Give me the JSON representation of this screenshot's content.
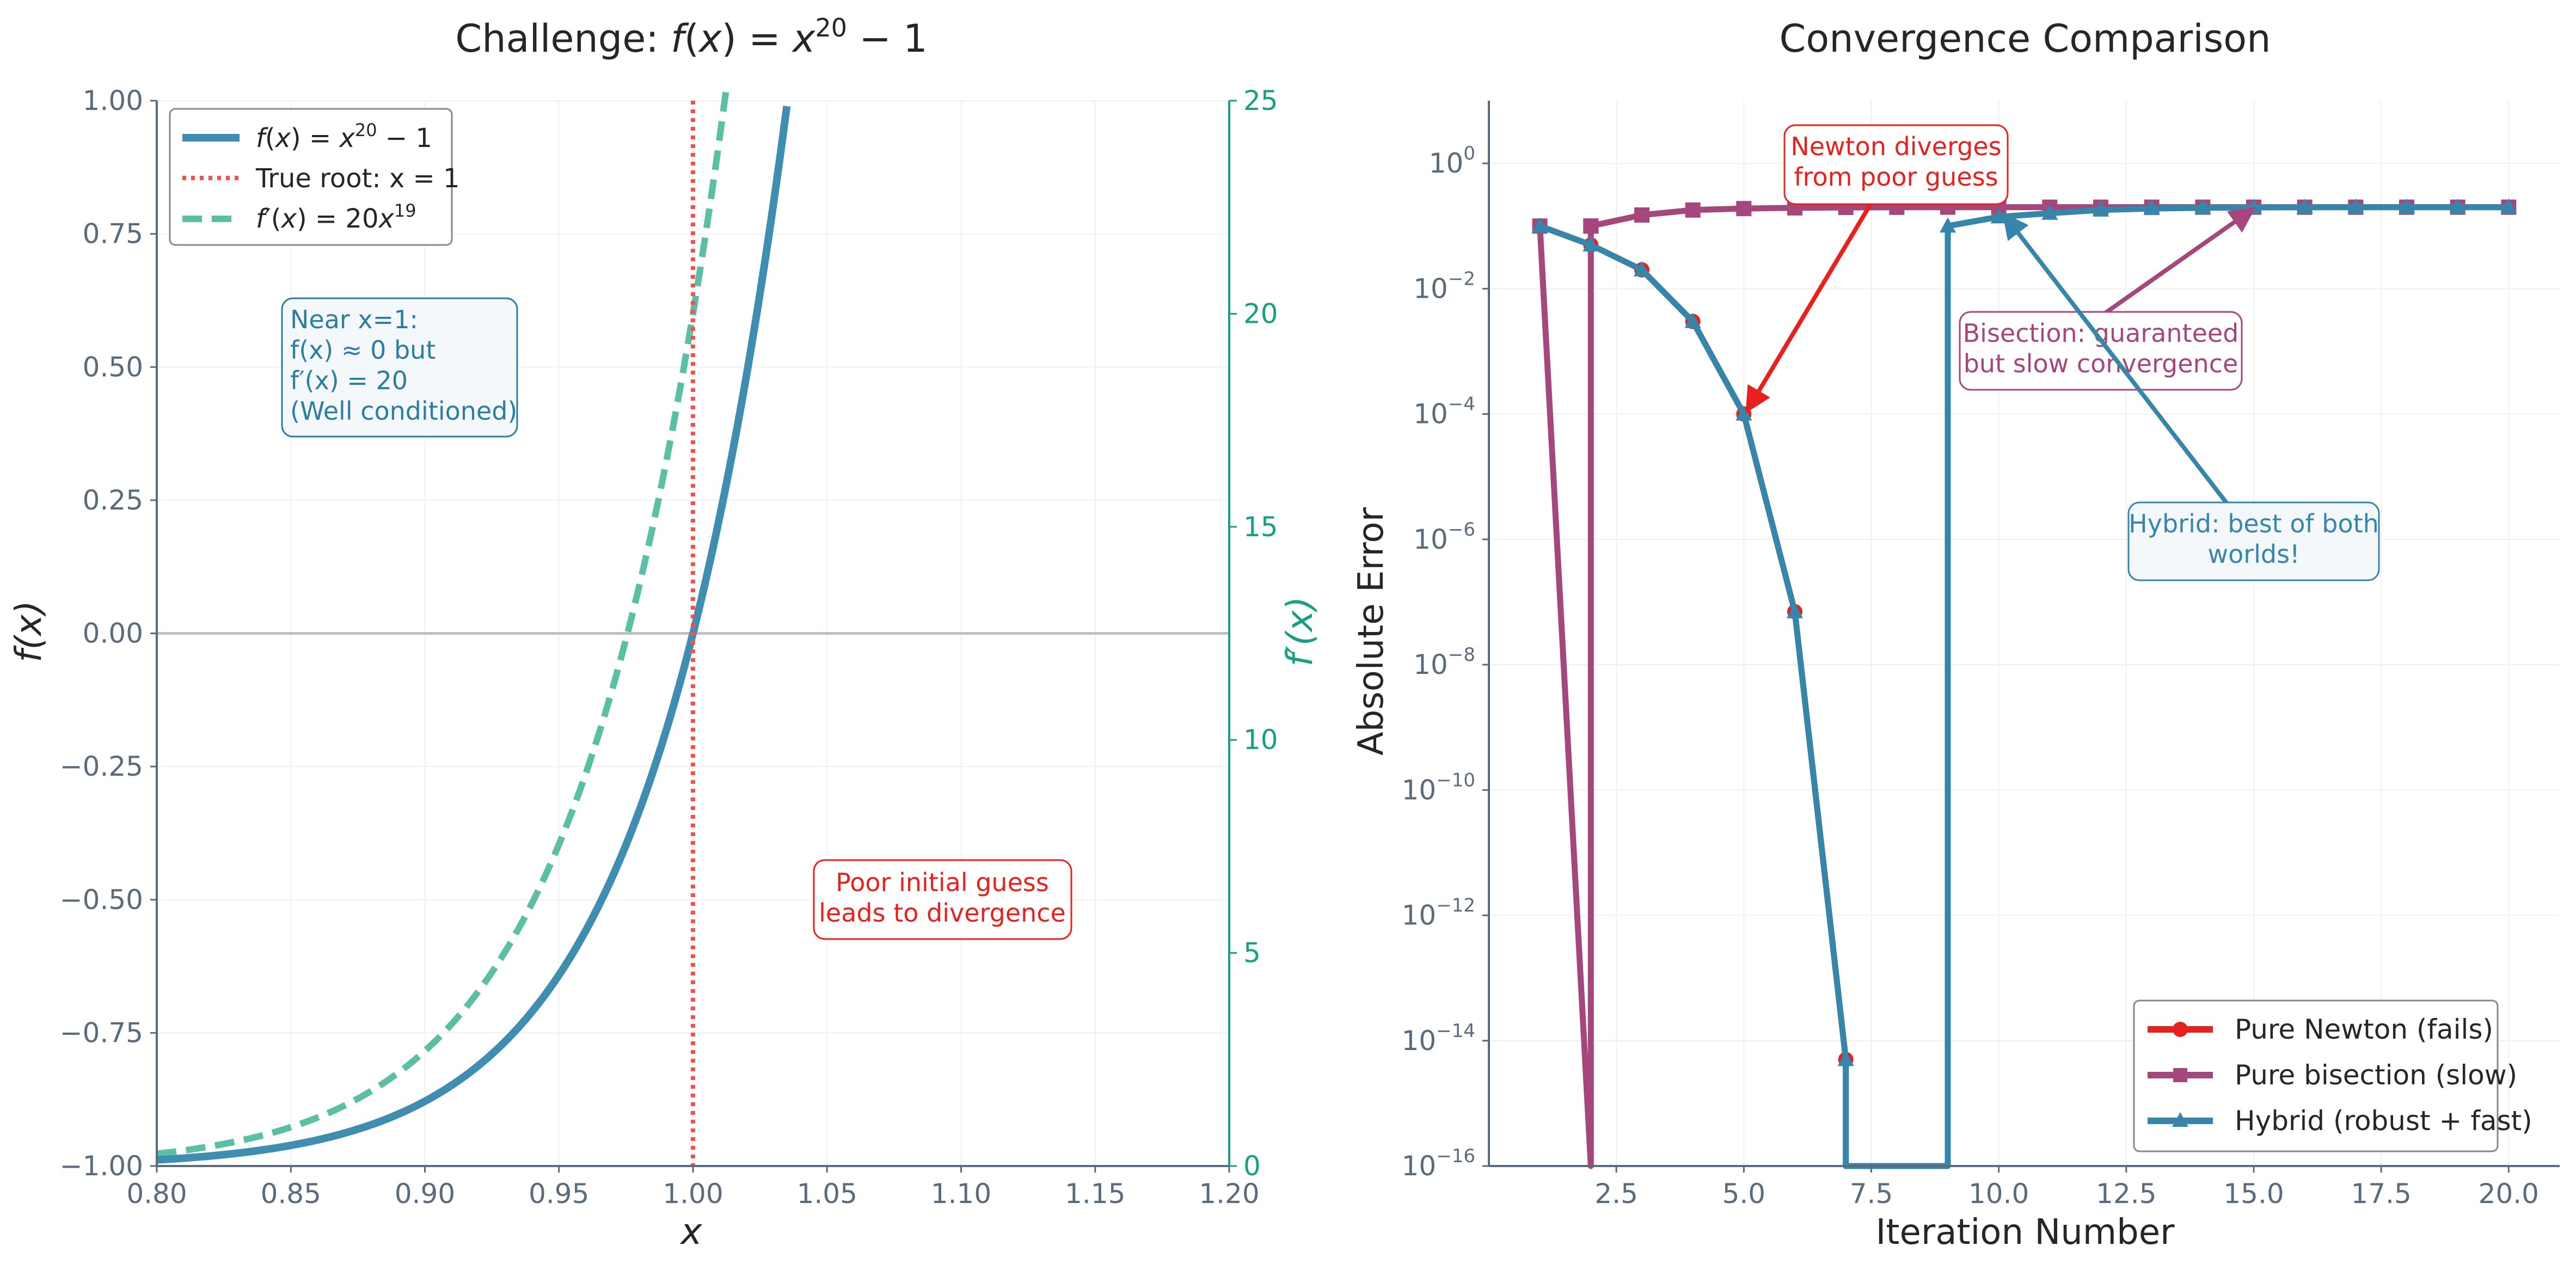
{
  "chart_data": [
    {
      "type": "line",
      "title": "Challenge: f(x) = x²⁰ − 1",
      "xlabel": "x",
      "ylabel": "f(x)",
      "ylabel_right": "f′(x)",
      "xlim": [
        0.8,
        1.2
      ],
      "ylim": [
        -1.0,
        1.0
      ],
      "ylim_right": [
        0,
        25
      ],
      "x_ticks": [
        "0.80",
        "0.85",
        "0.90",
        "0.95",
        "1.00",
        "1.05",
        "1.10",
        "1.15",
        "1.20"
      ],
      "y_ticks": [
        "−1.00",
        "−0.75",
        "−0.50",
        "−0.25",
        "0.00",
        "0.25",
        "0.50",
        "0.75",
        "1.00"
      ],
      "y_right_ticks": [
        "0",
        "5",
        "10",
        "15",
        "20",
        "25"
      ],
      "grid": true,
      "legend_position": "top-left",
      "series": [
        {
          "name": "f(x) = x²⁰ − 1",
          "style": "solid",
          "color": "#3f8db0",
          "function": "x^20 - 1",
          "axis": "left",
          "x": [
            0.8,
            0.85,
            0.9,
            0.95,
            1.0,
            1.02,
            1.035
          ],
          "y": [
            -0.988,
            -0.961,
            -0.878,
            -0.642,
            0.0,
            0.486,
            0.989
          ]
        },
        {
          "name": "True root: x = 1",
          "style": "dotted",
          "color": "#ff4d4d",
          "vertical_x": 1.0
        },
        {
          "name": "f′(x) = 20x¹⁹",
          "style": "dashed",
          "color": "#5bbfa4",
          "function": "20*x^19",
          "axis": "right",
          "x": [
            0.8,
            0.85,
            0.9,
            0.95,
            1.0,
            1.012
          ],
          "y": [
            0.29,
            0.91,
            2.7,
            7.55,
            20.0,
            25.0
          ]
        }
      ],
      "annotations": [
        {
          "text": [
            "Near x=1:",
            "f(x) ≈ 0 but",
            "f′(x) = 20",
            "(Well conditioned)"
          ],
          "color": "#2a7fa0"
        },
        {
          "text": [
            "Poor initial guess",
            "leads to divergence"
          ],
          "color": "#e8201e"
        }
      ]
    },
    {
      "type": "line",
      "title": "Convergence Comparison",
      "xlabel": "Iteration Number",
      "ylabel": "Absolute Error",
      "yscale": "log",
      "xlim": [
        0,
        21
      ],
      "ylim": [
        1e-16,
        10
      ],
      "x_ticks": [
        "2.5",
        "5.0",
        "7.5",
        "10.0",
        "12.5",
        "15.0",
        "17.5",
        "20.0"
      ],
      "y_ticks_exp": [
        "0",
        "−2",
        "−4",
        "−6",
        "−8",
        "−10",
        "−12",
        "−14",
        "−16"
      ],
      "grid": true,
      "legend_position": "bottom-right",
      "series": [
        {
          "name": "Pure Newton (fails)",
          "color": "#e8201e",
          "marker": "circle",
          "x": [
            1,
            2,
            3,
            4,
            5,
            6,
            7,
            7
          ],
          "y": [
            0.1,
            0.05,
            0.02,
            0.003,
            0.0001,
            7e-08,
            5e-15,
            1e-16
          ]
        },
        {
          "name": "Pure bisection (slow)",
          "color": "#a5467c",
          "marker": "square",
          "x": [
            1,
            2,
            2,
            2,
            3,
            4,
            5,
            6,
            7,
            8,
            9,
            10,
            11,
            12,
            13,
            14,
            15,
            16,
            17,
            18,
            19,
            20
          ],
          "y": [
            0.1,
            1e-16,
            0.1,
            0.1,
            0.15,
            0.18,
            0.19,
            0.195,
            0.198,
            0.199,
            0.2,
            0.2,
            0.2,
            0.2,
            0.2,
            0.2,
            0.2,
            0.2,
            0.2,
            0.2,
            0.2,
            0.2
          ]
        },
        {
          "name": "Hybrid (robust + fast)",
          "color": "#3686ab",
          "marker": "triangle",
          "x": [
            1,
            2,
            3,
            4,
            5,
            6,
            7,
            7,
            9,
            9,
            10,
            11,
            12,
            13,
            14,
            15,
            16,
            17,
            18,
            19,
            20
          ],
          "y": [
            0.1,
            0.05,
            0.02,
            0.003,
            0.0001,
            7e-08,
            5e-15,
            1e-16,
            1e-16,
            0.1,
            0.14,
            0.16,
            0.18,
            0.19,
            0.195,
            0.198,
            0.199,
            0.2,
            0.2,
            0.2,
            0.2
          ]
        }
      ],
      "annotations": [
        {
          "text": [
            "Newton diverges",
            "from poor guess"
          ],
          "color": "#e8201e",
          "arrow_to": [
            5,
            0.0001
          ]
        },
        {
          "text": [
            "Bisection: guaranteed",
            "but slow convergence"
          ],
          "color": "#a5467c",
          "arrow_to": [
            15,
            0.2
          ]
        },
        {
          "text": [
            "Hybrid: best of both",
            "worlds!"
          ],
          "color": "#3686ab",
          "arrow_to": [
            10,
            0.14
          ]
        }
      ]
    }
  ]
}
